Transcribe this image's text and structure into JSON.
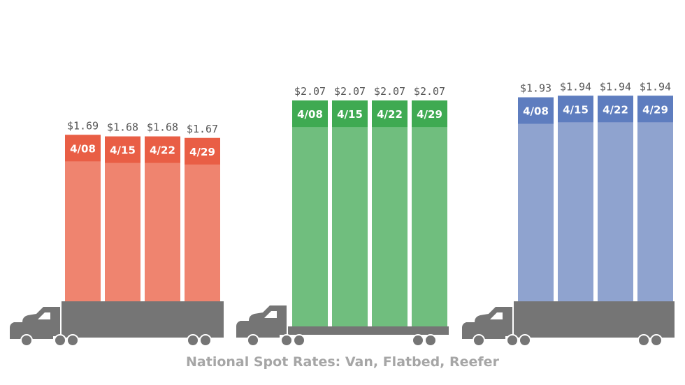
{
  "caption": "National Spot Rates: Van, Flatbed, Reefer",
  "chart_data": [
    {
      "type": "bar",
      "categories": [
        "4/08",
        "4/15",
        "4/22",
        "4/29"
      ],
      "values": [
        1.69,
        1.68,
        1.68,
        1.67
      ],
      "value_labels": [
        "$1.69",
        "$1.68",
        "$1.68",
        "$1.67"
      ],
      "ylim": [
        0,
        2.1
      ],
      "trailer": "van",
      "colors": {
        "body": "#ef846f",
        "cap": "#e95e45"
      }
    },
    {
      "type": "bar",
      "categories": [
        "4/08",
        "4/15",
        "4/22",
        "4/29"
      ],
      "values": [
        2.07,
        2.07,
        2.07,
        2.07
      ],
      "value_labels": [
        "$2.07",
        "$2.07",
        "$2.07",
        "$2.07"
      ],
      "ylim": [
        0,
        2.1
      ],
      "trailer": "flatbed",
      "colors": {
        "body": "#70be7e",
        "cap": "#3faa52"
      }
    },
    {
      "type": "bar",
      "categories": [
        "4/08",
        "4/15",
        "4/22",
        "4/29"
      ],
      "values": [
        1.93,
        1.94,
        1.94,
        1.94
      ],
      "value_labels": [
        "$1.93",
        "$1.94",
        "$1.94",
        "$1.94"
      ],
      "ylim": [
        0,
        2.1
      ],
      "trailer": "reefer",
      "colors": {
        "body": "#8fa3cf",
        "cap": "#5e7dbf"
      }
    }
  ],
  "truck_color": "#757575"
}
